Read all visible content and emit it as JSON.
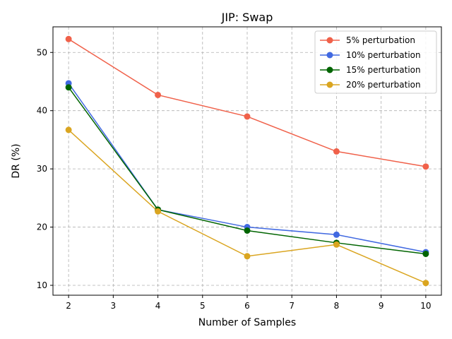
{
  "chart_data": {
    "type": "line",
    "title": "JIP: Swap",
    "xlabel": "Number of Samples",
    "ylabel": "DR (%)",
    "x": [
      2,
      4,
      6,
      8,
      10
    ],
    "xlim": [
      1.65,
      10.35
    ],
    "ylim": [
      8.3,
      54.4
    ],
    "xticks": [
      2,
      3,
      4,
      5,
      6,
      7,
      8,
      9,
      10
    ],
    "yticks": [
      10,
      20,
      30,
      40,
      50
    ],
    "grid": true,
    "legend_position": "top-right",
    "series": [
      {
        "name": "5% perturbation",
        "color": "#f0614a",
        "values": [
          52.3,
          42.7,
          39.0,
          33.0,
          30.4
        ]
      },
      {
        "name": "10% perturbation",
        "color": "#4169e1",
        "values": [
          44.7,
          23.0,
          20.0,
          18.7,
          15.7
        ]
      },
      {
        "name": "15% perturbation",
        "color": "#006400",
        "values": [
          44.0,
          23.0,
          19.4,
          17.3,
          15.4
        ]
      },
      {
        "name": "20% perturbation",
        "color": "#daa520",
        "values": [
          36.7,
          22.7,
          15.0,
          17.0,
          10.4
        ]
      }
    ]
  }
}
